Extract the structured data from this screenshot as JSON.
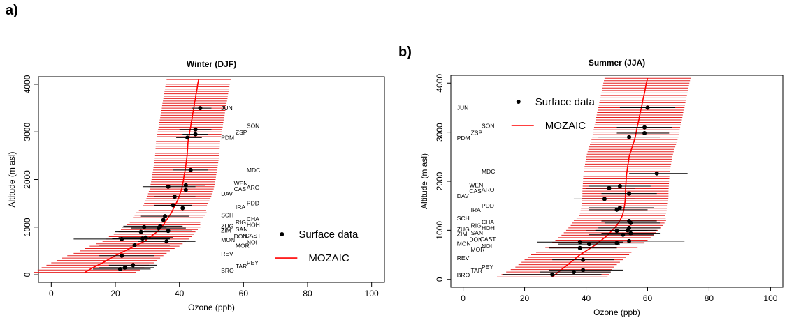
{
  "colors": {
    "model": "#ff0000",
    "model_band": "#e62020",
    "obs": "#000000",
    "axis": "#000000"
  },
  "chart_data": [
    {
      "panel_label": "a)",
      "type": "scatter",
      "title": "Winter (DJF)",
      "xlabel": "Ozone (ppb)",
      "ylabel": "Altitude (m asl)",
      "xlim": [
        0,
        100
      ],
      "ylim": [
        0,
        4000
      ],
      "xticks": [
        "0",
        "20",
        "40",
        "60",
        "80",
        "100"
      ],
      "yticks": [
        "0",
        "1000",
        "2000",
        "3000",
        "4000"
      ],
      "legend": {
        "placement": "bottom-right",
        "items": [
          {
            "label": "Surface data",
            "kind": "point"
          },
          {
            "label": "MOZAIC",
            "kind": "line"
          }
        ]
      },
      "mozaic": {
        "altitude": [
          50,
          150,
          250,
          400,
          500,
          600,
          700,
          800,
          900,
          1000,
          1100,
          1200,
          1300,
          1400,
          1500,
          1600,
          1700,
          1800,
          1900,
          2000,
          2100,
          2200,
          2300,
          2400,
          2500,
          2600,
          2700,
          2800,
          2900,
          3000,
          3100,
          3200,
          3300,
          3400,
          3500,
          3600,
          3700,
          3800,
          3900,
          4000,
          4100
        ],
        "ozone": [
          10.5,
          13,
          16,
          20,
          23,
          26,
          29,
          31,
          33,
          34.5,
          35.5,
          36.5,
          37.5,
          38.2,
          39,
          39.7,
          40.2,
          40.7,
          41,
          41.3,
          41.5,
          41.8,
          42,
          42.2,
          42.4,
          42.5,
          42.6,
          42.7,
          43,
          43.2,
          43.5,
          43.7,
          44,
          44.2,
          44.5,
          44.7,
          45,
          45.2,
          45.5,
          45.7,
          46
        ],
        "spread": [
          16,
          16,
          16,
          15,
          14,
          14,
          13,
          13,
          12,
          12,
          11,
          11,
          11,
          10,
          10,
          10,
          10,
          10,
          10,
          10,
          10,
          10,
          10,
          10,
          10,
          10,
          10,
          10,
          10,
          10,
          10,
          10,
          10,
          10,
          10,
          10,
          10,
          10,
          10,
          10,
          10
        ]
      },
      "surface": [
        {
          "alt": 3500,
          "ozone": 46.5,
          "lo": 44,
          "hi": 50
        },
        {
          "alt": 3050,
          "ozone": 45,
          "lo": 40,
          "hi": 50
        },
        {
          "alt": 2950,
          "ozone": 45,
          "lo": 41,
          "hi": 49
        },
        {
          "alt": 2880,
          "ozone": 42.5,
          "lo": 39,
          "hi": 47
        },
        {
          "alt": 2200,
          "ozone": 43.5,
          "lo": 38,
          "hi": 49
        },
        {
          "alt": 1880,
          "ozone": 42,
          "lo": 36,
          "hi": 48
        },
        {
          "alt": 1850,
          "ozone": 36.5,
          "lo": 28.5,
          "hi": 45
        },
        {
          "alt": 1780,
          "ozone": 42,
          "lo": 36,
          "hi": 48
        },
        {
          "alt": 1640,
          "ozone": 38.5,
          "lo": 32,
          "hi": 45
        },
        {
          "alt": 1460,
          "ozone": 38,
          "lo": 32,
          "hi": 44
        },
        {
          "alt": 1400,
          "ozone": 41,
          "lo": 35,
          "hi": 47
        },
        {
          "alt": 1230,
          "ozone": 35.5,
          "lo": 28,
          "hi": 43
        },
        {
          "alt": 1150,
          "ozone": 35,
          "lo": 27,
          "hi": 43
        },
        {
          "alt": 1020,
          "ozone": 34,
          "lo": 22.5,
          "hi": 41
        },
        {
          "alt": 1000,
          "ozone": 29,
          "lo": 22,
          "hi": 36
        },
        {
          "alt": 980,
          "ozone": 33.5,
          "lo": 25,
          "hi": 42
        },
        {
          "alt": 920,
          "ozone": 36.5,
          "lo": 29,
          "hi": 44
        },
        {
          "alt": 900,
          "ozone": 28,
          "lo": 20,
          "hi": 36
        },
        {
          "alt": 780,
          "ozone": 29.5,
          "lo": 21,
          "hi": 38
        },
        {
          "alt": 760,
          "ozone": 28.5,
          "lo": 19,
          "hi": 37
        },
        {
          "alt": 750,
          "ozone": 22,
          "lo": 7,
          "hi": 37
        },
        {
          "alt": 700,
          "ozone": 36,
          "lo": 27,
          "hi": 45
        },
        {
          "alt": 620,
          "ozone": 26,
          "lo": 15,
          "hi": 37
        },
        {
          "alt": 400,
          "ozone": 22,
          "lo": 15,
          "hi": 32
        },
        {
          "alt": 200,
          "ozone": 25.5,
          "lo": 18,
          "hi": 33
        },
        {
          "alt": 150,
          "ozone": 23,
          "lo": 15,
          "hi": 32
        },
        {
          "alt": 120,
          "ozone": 21.5,
          "lo": 13,
          "hi": 31
        }
      ],
      "stations": [
        {
          "label": "JUN",
          "x": 53,
          "alt": 3500
        },
        {
          "label": "SON",
          "x": 61,
          "alt": 3130
        },
        {
          "label": "ZSP",
          "x": 57.5,
          "alt": 2990
        },
        {
          "label": "PDM",
          "x": 53,
          "alt": 2880
        },
        {
          "label": "MDC",
          "x": 61,
          "alt": 2200
        },
        {
          "label": "WEN",
          "x": 57,
          "alt": 1920
        },
        {
          "label": "CAS",
          "x": 57,
          "alt": 1800
        },
        {
          "label": "ARO",
          "x": 61,
          "alt": 1830
        },
        {
          "label": "DAV",
          "x": 53,
          "alt": 1700
        },
        {
          "label": "PDD",
          "x": 61,
          "alt": 1500
        },
        {
          "label": "IRA",
          "x": 57.5,
          "alt": 1420
        },
        {
          "label": "SCH",
          "x": 53,
          "alt": 1250
        },
        {
          "label": "CHA",
          "x": 61,
          "alt": 1170
        },
        {
          "label": "RIG",
          "x": 57.5,
          "alt": 1100
        },
        {
          "label": "ZUG",
          "x": 53,
          "alt": 1020
        },
        {
          "label": "HOH",
          "x": 61,
          "alt": 1050
        },
        {
          "label": "ZIM",
          "x": 53,
          "alt": 930
        },
        {
          "label": "SAN",
          "x": 57.5,
          "alt": 950
        },
        {
          "label": "DON",
          "x": 57,
          "alt": 810
        },
        {
          "label": "CAST",
          "x": 60.5,
          "alt": 820
        },
        {
          "label": "MON",
          "x": 53,
          "alt": 730
        },
        {
          "label": "NOI",
          "x": 61,
          "alt": 680
        },
        {
          "label": "MOR",
          "x": 57.5,
          "alt": 610
        },
        {
          "label": "REV",
          "x": 53,
          "alt": 440
        },
        {
          "label": "PEY",
          "x": 61,
          "alt": 250
        },
        {
          "label": "TAR",
          "x": 57.5,
          "alt": 180
        },
        {
          "label": "BRO",
          "x": 53,
          "alt": 90
        }
      ]
    },
    {
      "panel_label": "b)",
      "type": "scatter",
      "title": "Summer (JJA)",
      "xlabel": "Ozone (ppb)",
      "ylabel": "Altitude (m asl)",
      "xlim": [
        0,
        100
      ],
      "ylim": [
        0,
        4000
      ],
      "xticks": [
        "0",
        "20",
        "40",
        "60",
        "80",
        "100"
      ],
      "yticks": [
        "0",
        "1000",
        "2000",
        "3000",
        "4000"
      ],
      "legend": {
        "placement": "top-left",
        "items": [
          {
            "label": "Surface data",
            "kind": "point"
          },
          {
            "label": "MOZAIC",
            "kind": "line"
          }
        ]
      },
      "mozaic": {
        "altitude": [
          50,
          150,
          250,
          400,
          500,
          600,
          700,
          800,
          900,
          1000,
          1100,
          1200,
          1300,
          1400,
          1500,
          1600,
          1700,
          1800,
          1900,
          2000,
          2100,
          2200,
          2300,
          2400,
          2500,
          2600,
          2700,
          2800,
          2900,
          3000,
          3100,
          3200,
          3300,
          3400,
          3500,
          3600,
          3700,
          3800,
          3900,
          4000,
          4100
        ],
        "ozone": [
          29,
          31,
          33,
          36,
          38,
          40.5,
          43,
          45,
          47,
          48.5,
          50,
          51,
          51.8,
          52.2,
          52.5,
          52.7,
          52.8,
          52.8,
          52.9,
          53,
          53.1,
          53.3,
          53.5,
          53.8,
          54,
          54.5,
          55,
          55.5,
          56,
          56.3,
          56.6,
          57,
          57.3,
          57.6,
          58,
          58.3,
          58.6,
          59,
          59.3,
          59.6,
          60
        ],
        "spread": [
          18,
          17,
          16,
          16,
          16,
          15,
          15,
          15,
          15,
          15,
          15,
          15,
          14,
          14,
          14,
          14,
          14,
          14,
          14,
          14,
          14,
          14,
          14,
          14,
          14,
          14,
          14,
          14,
          14,
          14,
          14,
          14,
          14,
          14,
          14,
          14,
          14,
          14,
          14,
          14,
          14
        ]
      },
      "surface": [
        {
          "alt": 3500,
          "ozone": 60,
          "lo": 51,
          "hi": 69
        },
        {
          "alt": 3100,
          "ozone": 59,
          "lo": 50,
          "hi": 68
        },
        {
          "alt": 2980,
          "ozone": 59,
          "lo": 50,
          "hi": 67
        },
        {
          "alt": 2900,
          "ozone": 54,
          "lo": 44,
          "hi": 64
        },
        {
          "alt": 2160,
          "ozone": 63,
          "lo": 54,
          "hi": 73
        },
        {
          "alt": 1900,
          "ozone": 51,
          "lo": 41,
          "hi": 61
        },
        {
          "alt": 1860,
          "ozone": 47.5,
          "lo": 40,
          "hi": 56
        },
        {
          "alt": 1750,
          "ozone": 54,
          "lo": 45,
          "hi": 63
        },
        {
          "alt": 1640,
          "ozone": 46,
          "lo": 36,
          "hi": 56
        },
        {
          "alt": 1460,
          "ozone": 51,
          "lo": 41,
          "hi": 62
        },
        {
          "alt": 1420,
          "ozone": 50,
          "lo": 41,
          "hi": 60
        },
        {
          "alt": 1190,
          "ozone": 54,
          "lo": 45,
          "hi": 63
        },
        {
          "alt": 1150,
          "ozone": 54.5,
          "lo": 46,
          "hi": 64
        },
        {
          "alt": 1050,
          "ozone": 54,
          "lo": 44,
          "hi": 64
        },
        {
          "alt": 1000,
          "ozone": 53.5,
          "lo": 43,
          "hi": 63
        },
        {
          "alt": 990,
          "ozone": 50,
          "lo": 40,
          "hi": 60
        },
        {
          "alt": 940,
          "ozone": 54.5,
          "lo": 45,
          "hi": 64
        },
        {
          "alt": 910,
          "ozone": 52,
          "lo": 41,
          "hi": 62
        },
        {
          "alt": 780,
          "ozone": 54,
          "lo": 38,
          "hi": 72
        },
        {
          "alt": 760,
          "ozone": 38,
          "lo": 24,
          "hi": 52
        },
        {
          "alt": 740,
          "ozone": 50,
          "lo": 41,
          "hi": 59
        },
        {
          "alt": 720,
          "ozone": 41,
          "lo": 31,
          "hi": 51
        },
        {
          "alt": 640,
          "ozone": 38,
          "lo": 28,
          "hi": 50
        },
        {
          "alt": 400,
          "ozone": 39,
          "lo": 29,
          "hi": 49
        },
        {
          "alt": 190,
          "ozone": 39,
          "lo": 28,
          "hi": 52
        },
        {
          "alt": 150,
          "ozone": 36,
          "lo": 25,
          "hi": 48
        },
        {
          "alt": 100,
          "ozone": 29,
          "lo": 13,
          "hi": 45
        }
      ],
      "stations": [
        {
          "label": "JUN",
          "x": -2,
          "alt": 3500
        },
        {
          "label": "SON",
          "x": 6,
          "alt": 3130
        },
        {
          "label": "ZSP",
          "x": 2.5,
          "alt": 2990
        },
        {
          "label": "PDM",
          "x": -2,
          "alt": 2880
        },
        {
          "label": "MDC",
          "x": 6,
          "alt": 2200
        },
        {
          "label": "WEN",
          "x": 2,
          "alt": 1920
        },
        {
          "label": "CAS",
          "x": 2,
          "alt": 1800
        },
        {
          "label": "ARO",
          "x": 6,
          "alt": 1830
        },
        {
          "label": "DAV",
          "x": -2,
          "alt": 1700
        },
        {
          "label": "PDD",
          "x": 6,
          "alt": 1500
        },
        {
          "label": "IRA",
          "x": 2.5,
          "alt": 1420
        },
        {
          "label": "SCH",
          "x": -2,
          "alt": 1250
        },
        {
          "label": "CHA",
          "x": 6,
          "alt": 1170
        },
        {
          "label": "RIG",
          "x": 2.5,
          "alt": 1100
        },
        {
          "label": "ZUG",
          "x": -2,
          "alt": 1020
        },
        {
          "label": "HOH",
          "x": 6,
          "alt": 1050
        },
        {
          "label": "ZIM",
          "x": -2,
          "alt": 930
        },
        {
          "label": "SAN",
          "x": 2.5,
          "alt": 950
        },
        {
          "label": "DON",
          "x": 2,
          "alt": 810
        },
        {
          "label": "CAST",
          "x": 5.5,
          "alt": 820
        },
        {
          "label": "MON",
          "x": -2,
          "alt": 730
        },
        {
          "label": "NOI",
          "x": 6,
          "alt": 680
        },
        {
          "label": "MOR",
          "x": 2.5,
          "alt": 610
        },
        {
          "label": "REV",
          "x": -2,
          "alt": 440
        },
        {
          "label": "PEY",
          "x": 6,
          "alt": 250
        },
        {
          "label": "TAR",
          "x": 2.5,
          "alt": 180
        },
        {
          "label": "BRO",
          "x": -2,
          "alt": 90
        }
      ]
    }
  ]
}
